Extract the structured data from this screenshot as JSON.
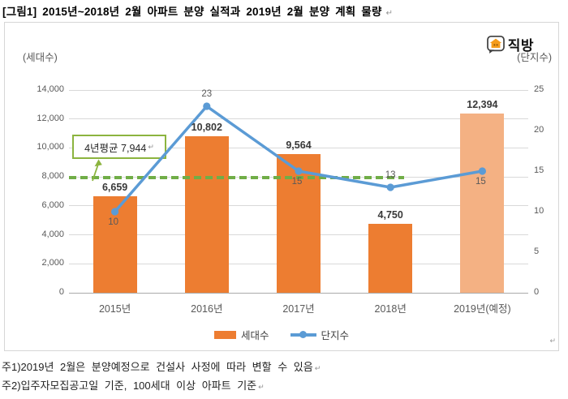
{
  "title": "[그림1] 2015년~2018년 2월 아파트 분양 실적과 2019년 2월 분양 계획 물량",
  "return_mark": "↵",
  "logo_text": "직방",
  "chart_data": {
    "type": "bar+line combo",
    "categories": [
      "2015년",
      "2016년",
      "2017년",
      "2018년",
      "2019년(예정)"
    ],
    "series": [
      {
        "name": "세대수",
        "type": "bar",
        "axis": "left",
        "values": [
          6659,
          10802,
          9564,
          4750,
          12394
        ],
        "value_labels": [
          "6,659",
          "10,802",
          "9,564",
          "4,750",
          "12,394"
        ],
        "bar_colors": [
          "#ED7D31",
          "#ED7D31",
          "#ED7D31",
          "#ED7D31",
          "#F4B183"
        ]
      },
      {
        "name": "단지수",
        "type": "line",
        "axis": "right",
        "values": [
          10,
          23,
          15,
          13,
          15
        ],
        "value_labels": [
          "10",
          "23",
          "15",
          "13",
          "15"
        ],
        "label_positions": [
          "below",
          "above",
          "below",
          "above",
          "below"
        ],
        "color": "#5B9BD5"
      }
    ],
    "left_axis": {
      "title": "(세대수)",
      "min": 0,
      "max": 14000,
      "tick_step": 2000,
      "tick_labels": [
        "0",
        "2,000",
        "4,000",
        "6,000",
        "8,000",
        "10,000",
        "12,000",
        "14,000"
      ]
    },
    "right_axis": {
      "title": "(단지수)",
      "min": 0,
      "max": 25,
      "tick_step": 5,
      "tick_labels": [
        "0",
        "5",
        "10",
        "15",
        "20",
        "25"
      ]
    },
    "average_line": {
      "value": 7944,
      "label": "4년평균 7,944",
      "color": "#70AD47",
      "box_border_color": "#8CB43F"
    },
    "colors": {
      "grid": "#D9D9D9",
      "axis_line": "#ABABAB",
      "tick_text": "#595959",
      "bar_label_text": "#383838"
    },
    "legend_position": "bottom",
    "grid": true
  },
  "legend": [
    {
      "label": "세대수"
    },
    {
      "label": "단지수"
    }
  ],
  "footnotes": [
    "주1)2019년 2월은 분양예정으로 건설사 사정에 따라 변할 수 있음",
    "주2)입주자모집공고일 기준, 100세대 이상 아파트 기준"
  ]
}
